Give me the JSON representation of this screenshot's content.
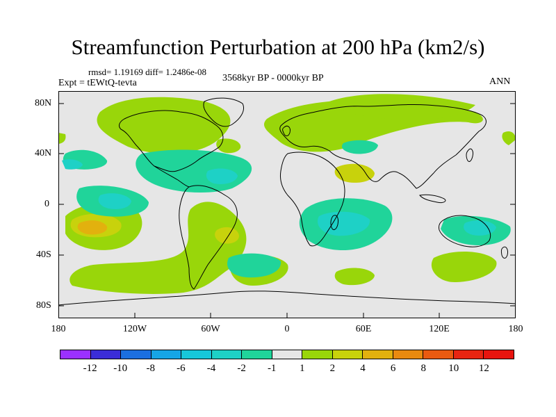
{
  "title": "Streamfunction Perturbation at 200 hPa (km2/s)",
  "stats": "rmsd= 1.19169 diff= 1.2486e-08",
  "experiment": "Expt = tEWtQ-tevta",
  "period": "3568kyr BP - 0000kyr BP",
  "season": "ANN",
  "y_ticks": [
    "80N",
    "40N",
    "0",
    "40S",
    "80S"
  ],
  "x_ticks": [
    "180",
    "120W",
    "60W",
    "0",
    "60E",
    "120E",
    "180"
  ],
  "colorbar": {
    "labels": [
      "-12",
      "-10",
      "-8",
      "-6",
      "-4",
      "-2",
      "-1",
      "1",
      "2",
      "4",
      "6",
      "8",
      "10",
      "12"
    ],
    "colors": [
      "#9b30ff",
      "#3b2dd8",
      "#1c6fe0",
      "#16a5e6",
      "#17c7da",
      "#1ed1c6",
      "#20d49a",
      "#e6e6e6",
      "#99d60a",
      "#c8d20c",
      "#e2b10e",
      "#e98a0f",
      "#ea5a10",
      "#e82512",
      "#e8140f"
    ]
  },
  "colors": {
    "background": "#e6e6e6",
    "pos1": "#99d60a",
    "pos2": "#c8d20c",
    "pos3": "#e2b10e",
    "neg1": "#20d49a",
    "neg2": "#1ed1c6"
  }
}
